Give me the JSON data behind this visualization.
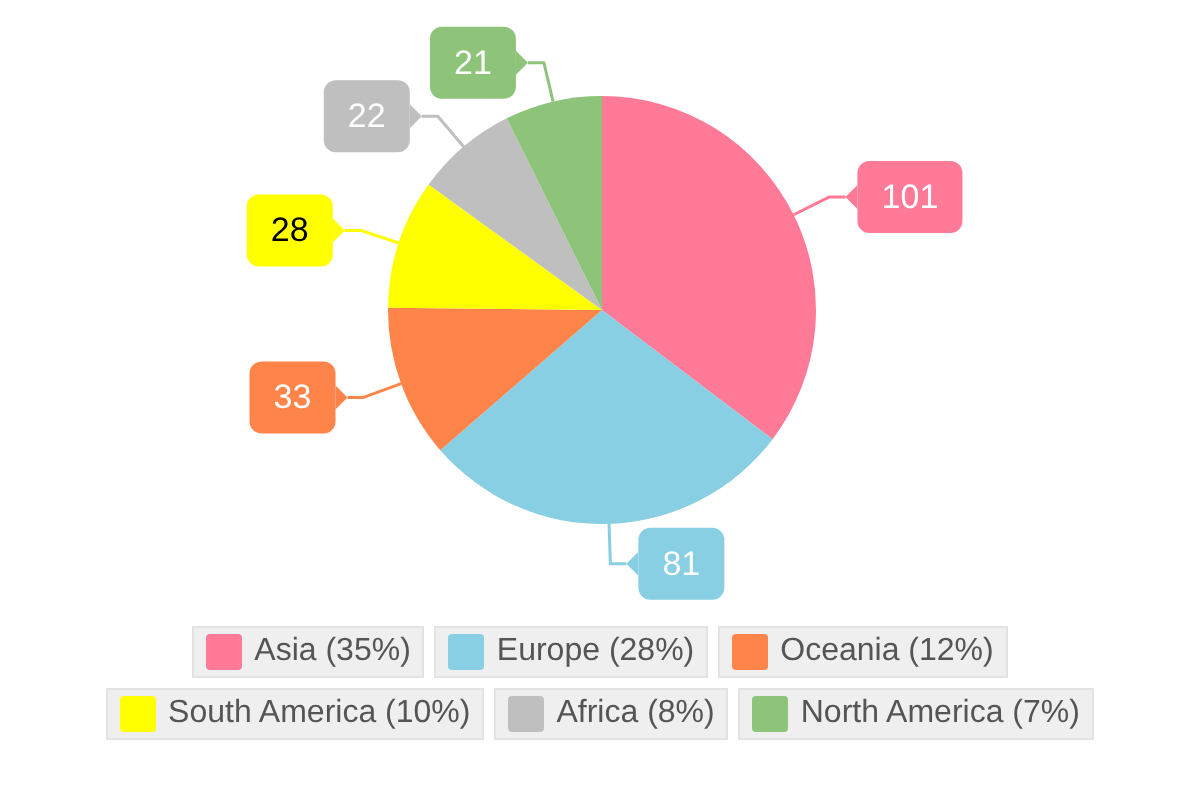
{
  "chart_data": {
    "type": "pie",
    "categories": [
      "Asia (35%)",
      "Europe (28%)",
      "Oceania (12%)",
      "South America (10%)",
      "Africa (8%)",
      "North America (7%)"
    ],
    "values": [
      101,
      81,
      33,
      28,
      22,
      21
    ],
    "colors": [
      "#ff7a97",
      "#88cfe3",
      "#ff8449",
      "#ffff00",
      "#bfbfbf",
      "#8ec47a"
    ],
    "data_labels": true,
    "legend": "bottom"
  }
}
